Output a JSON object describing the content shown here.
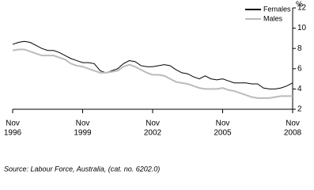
{
  "chart_data": {
    "type": "line",
    "y_unit": "%",
    "source": "Source: Labour Force, Australia, (cat. no. 6202.0)",
    "x": [
      "1996-11",
      "1997-02",
      "1997-05",
      "1997-08",
      "1997-11",
      "1998-02",
      "1998-05",
      "1998-08",
      "1998-11",
      "1999-02",
      "1999-05",
      "1999-08",
      "1999-11",
      "2000-02",
      "2000-05",
      "2000-08",
      "2000-11",
      "2001-02",
      "2001-05",
      "2001-08",
      "2001-11",
      "2002-02",
      "2002-05",
      "2002-08",
      "2002-11",
      "2003-02",
      "2003-05",
      "2003-08",
      "2003-11",
      "2004-02",
      "2004-05",
      "2004-08",
      "2004-11",
      "2005-02",
      "2005-05",
      "2005-08",
      "2005-11",
      "2006-02",
      "2006-05",
      "2006-08",
      "2006-11",
      "2007-02",
      "2007-05",
      "2007-08",
      "2007-11",
      "2008-02",
      "2008-05",
      "2008-08",
      "2008-11"
    ],
    "xticks": [
      {
        "value": "1996-11",
        "label": [
          "Nov",
          "1996"
        ]
      },
      {
        "value": "1999-11",
        "label": [
          "Nov",
          "1999"
        ]
      },
      {
        "value": "2002-11",
        "label": [
          "Nov",
          "2002"
        ]
      },
      {
        "value": "2005-11",
        "label": [
          "Nov",
          "2005"
        ]
      },
      {
        "value": "2008-11",
        "label": [
          "Nov",
          "2008"
        ]
      }
    ],
    "series": [
      {
        "name": "Females",
        "color": "#000000",
        "values": [
          8.4,
          8.6,
          8.7,
          8.6,
          8.3,
          8.0,
          7.8,
          7.8,
          7.6,
          7.3,
          7.0,
          6.8,
          6.6,
          6.6,
          6.5,
          5.8,
          5.6,
          5.8,
          6.0,
          6.5,
          6.8,
          6.7,
          6.3,
          6.2,
          6.2,
          6.3,
          6.4,
          6.3,
          5.9,
          5.6,
          5.5,
          5.2,
          5.0,
          5.3,
          5.0,
          4.9,
          5.0,
          4.8,
          4.6,
          4.6,
          4.6,
          4.5,
          4.5,
          4.1,
          4.0,
          4.0,
          4.1,
          4.3,
          4.6
        ]
      },
      {
        "name": "Males",
        "color": "#bbbbbb",
        "values": [
          7.8,
          7.9,
          7.9,
          7.7,
          7.5,
          7.3,
          7.3,
          7.3,
          7.1,
          6.9,
          6.5,
          6.3,
          6.2,
          6.0,
          5.8,
          5.6,
          5.6,
          5.7,
          5.8,
          6.2,
          6.4,
          6.2,
          5.9,
          5.6,
          5.4,
          5.4,
          5.3,
          5.0,
          4.7,
          4.6,
          4.5,
          4.3,
          4.1,
          4.0,
          4.0,
          4.0,
          4.1,
          3.9,
          3.8,
          3.6,
          3.4,
          3.2,
          3.1,
          3.1,
          3.1,
          3.2,
          3.3,
          3.3,
          3.3
        ]
      }
    ],
    "ylim": [
      2,
      12
    ],
    "yticks": [
      2,
      4,
      6,
      8,
      10,
      12
    ],
    "legend": "top-right"
  }
}
